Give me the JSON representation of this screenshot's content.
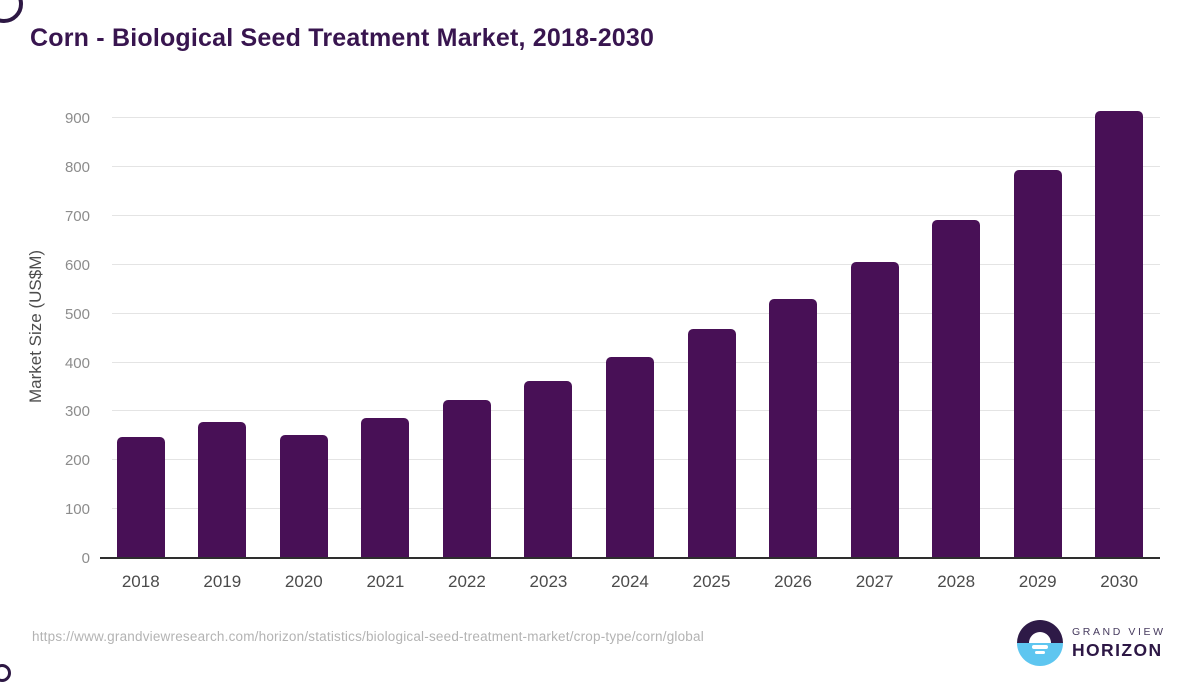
{
  "title": "Corn - Biological Seed Treatment Market, 2018-2030",
  "chart_data": {
    "type": "bar",
    "title": "Corn - Biological Seed Treatment Market, 2018-2030",
    "categories": [
      "2018",
      "2019",
      "2020",
      "2021",
      "2022",
      "2023",
      "2024",
      "2025",
      "2026",
      "2027",
      "2028",
      "2029",
      "2030"
    ],
    "values": [
      246,
      277,
      250,
      284,
      321,
      360,
      410,
      466,
      528,
      604,
      690,
      793,
      914
    ],
    "xlabel": "",
    "ylabel": "Market Size (US$M)",
    "ylim": [
      0,
      950
    ],
    "yticks": [
      0,
      100,
      200,
      300,
      400,
      500,
      600,
      700,
      800,
      900
    ],
    "grid": "horizontal",
    "legend_position": "none",
    "bar_color": "#481056"
  },
  "footer": {
    "source_url": "https://www.grandviewresearch.com/horizon/statistics/biological-seed-treatment-market/crop-type/corn/global",
    "logo_top": "GRAND VIEW",
    "logo_bottom": "HORIZON"
  },
  "colors": {
    "bar": "#481056",
    "title_text": "#38154f",
    "axis_label_text": "#4d4d4d",
    "x_tick_text": "#4b4b4b",
    "y_tick_text": "#8c8c8c",
    "gridline": "#e4e4e4",
    "zero_line": "#2e2e2e",
    "url_text": "#b3b3b3",
    "logo_dark": "#2e1a47",
    "logo_blue": "#5ec6f0"
  }
}
